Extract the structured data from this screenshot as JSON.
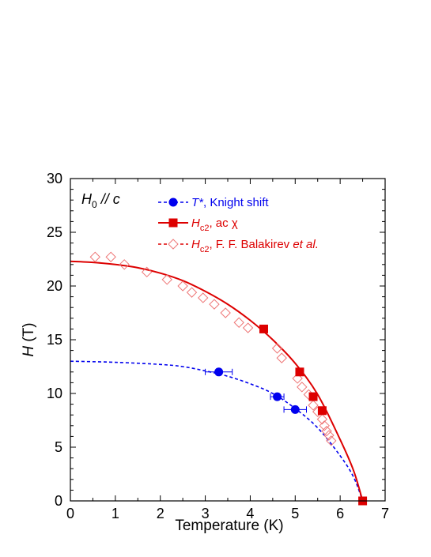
{
  "chart_data": {
    "type": "scatter",
    "xlabel": "Temperature (K)",
    "ylabel_main": "H",
    "ylabel_unit": " (T)",
    "xlim": [
      0,
      7
    ],
    "ylim": [
      0,
      30
    ],
    "xticks": [
      0,
      1,
      2,
      3,
      4,
      5,
      6,
      7
    ],
    "yticks": [
      0,
      5,
      10,
      15,
      20,
      25,
      30
    ],
    "annotation": {
      "main": "H",
      "sub": "0",
      "rest": " // c"
    },
    "legend": [
      {
        "main": "T*",
        "sub": "",
        "rest": ", Knight shift",
        "color": "#0000ee"
      },
      {
        "main": "H",
        "sub": "c2",
        "rest": ", ac χ",
        "color": "#dd0000"
      },
      {
        "main": "H",
        "sub": "c2",
        "rest": ", F. F. Balakirev ",
        "italic_tail": "et al.",
        "color": "#dd0000"
      }
    ],
    "series": [
      {
        "name": "T*, Knight shift",
        "color": "#0000ee",
        "marker": "circle",
        "points": [
          {
            "x": 3.3,
            "y": 12.0,
            "xerr": 0.3
          },
          {
            "x": 4.6,
            "y": 9.7,
            "xerr": 0.15
          },
          {
            "x": 5.0,
            "y": 8.5,
            "xerr": 0.25
          }
        ],
        "fit": {
          "style": "dashed",
          "x": [
            0,
            1,
            2,
            2.5,
            3,
            3.5,
            4,
            4.5,
            5,
            5.5,
            6,
            6.3,
            6.5
          ],
          "y": [
            13.0,
            12.9,
            12.7,
            12.5,
            12.1,
            11.6,
            10.9,
            10.0,
            8.6,
            6.8,
            4.2,
            2.2,
            0
          ]
        }
      },
      {
        "name": "Hc2, ac χ",
        "color": "#dd0000",
        "marker": "square",
        "points": [
          {
            "x": 4.3,
            "y": 16.0
          },
          {
            "x": 5.1,
            "y": 12.0
          },
          {
            "x": 5.4,
            "y": 9.7
          },
          {
            "x": 5.6,
            "y": 8.4
          },
          {
            "x": 6.5,
            "y": 0.0
          }
        ],
        "fit": {
          "style": "solid",
          "x": [
            0,
            0.5,
            1,
            1.5,
            2,
            2.5,
            3,
            3.5,
            4,
            4.5,
            5,
            5.5,
            6,
            6.3,
            6.5
          ],
          "y": [
            22.3,
            22.2,
            22.0,
            21.7,
            21.2,
            20.5,
            19.5,
            18.3,
            16.8,
            15.0,
            12.8,
            9.9,
            5.7,
            2.8,
            0
          ]
        }
      },
      {
        "name": "Hc2, F. F. Balakirev et al.",
        "color": "#ee7777",
        "marker": "diamond",
        "points": [
          {
            "x": 0.55,
            "y": 22.7
          },
          {
            "x": 0.9,
            "y": 22.7
          },
          {
            "x": 1.2,
            "y": 22.0
          },
          {
            "x": 1.7,
            "y": 21.3
          },
          {
            "x": 2.15,
            "y": 20.6
          },
          {
            "x": 2.5,
            "y": 20.0
          },
          {
            "x": 2.7,
            "y": 19.4
          },
          {
            "x": 2.95,
            "y": 18.9
          },
          {
            "x": 3.2,
            "y": 18.3
          },
          {
            "x": 3.45,
            "y": 17.5
          },
          {
            "x": 3.75,
            "y": 16.6
          },
          {
            "x": 3.95,
            "y": 16.1
          },
          {
            "x": 4.6,
            "y": 14.2
          },
          {
            "x": 4.7,
            "y": 13.3
          },
          {
            "x": 5.05,
            "y": 11.4
          },
          {
            "x": 5.15,
            "y": 10.6
          },
          {
            "x": 5.3,
            "y": 9.9
          },
          {
            "x": 5.4,
            "y": 8.9
          },
          {
            "x": 5.5,
            "y": 8.3
          },
          {
            "x": 5.6,
            "y": 7.6
          },
          {
            "x": 5.65,
            "y": 7.0
          },
          {
            "x": 5.7,
            "y": 6.5
          },
          {
            "x": 5.75,
            "y": 6.1
          },
          {
            "x": 5.8,
            "y": 5.6
          }
        ]
      }
    ]
  }
}
